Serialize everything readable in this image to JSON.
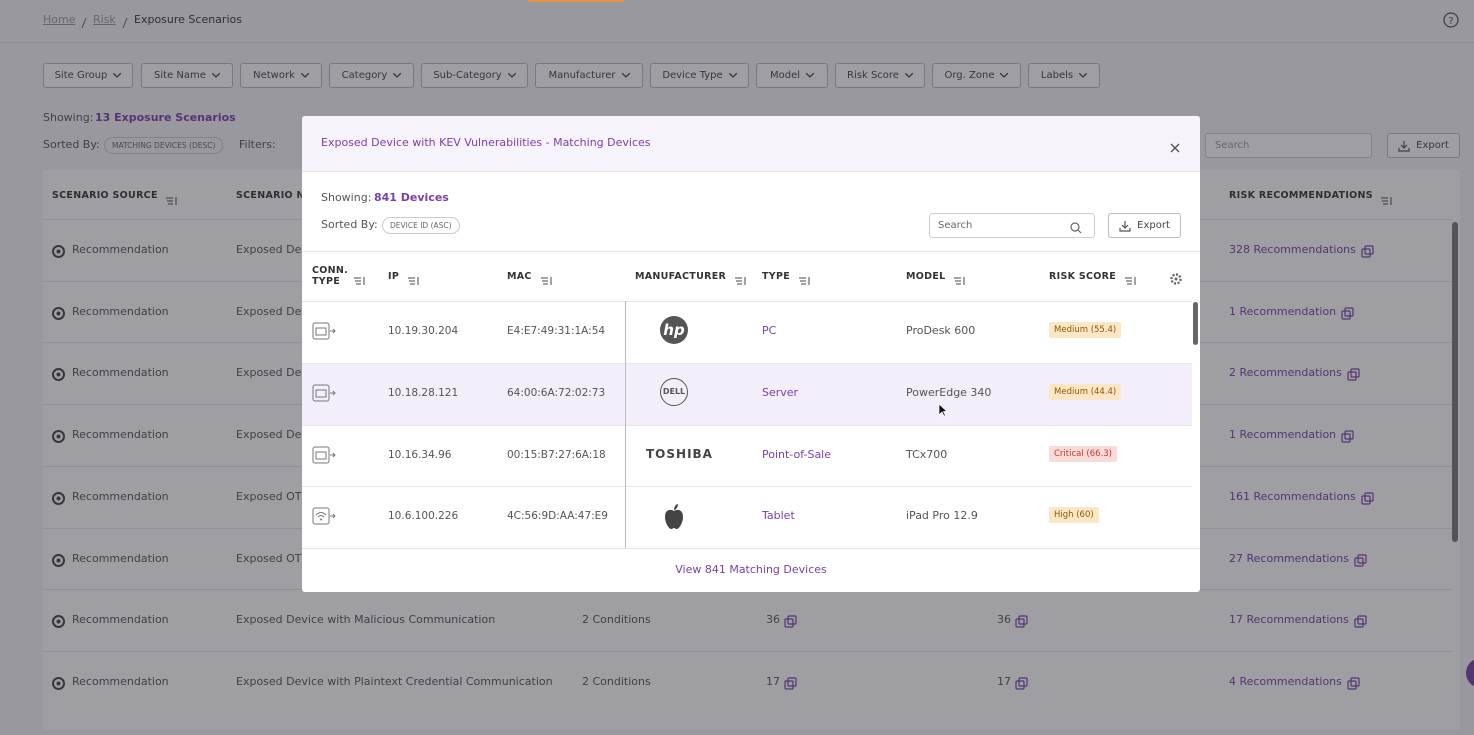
{
  "breadcrumb": [
    "Home",
    "Risk",
    "Exposure Scenarios"
  ],
  "filters": [
    "Site Group",
    "Site Name",
    "Network",
    "Category",
    "Sub-Category",
    "Manufacturer",
    "Device Type",
    "Model",
    "Risk Score",
    "Org. Zone",
    "Labels"
  ],
  "summary": {
    "showing_label": "Showing:",
    "showing_value": "13 Exposure Scenarios",
    "sorted_label": "Sorted By:",
    "sorted_value": "MATCHING DEVICES (DESC)",
    "filters_label": "Filters:"
  },
  "toolbar": {
    "search_placeholder": "Search",
    "export": "Export"
  },
  "table": {
    "headers": [
      "SCENARIO SOURCE",
      "SCENARIO NA",
      "RISK RECOMMENDATIONS"
    ],
    "rows": [
      {
        "source": "Recommendation",
        "name": "Exposed Dev",
        "recommendations": "328 Recommendations"
      },
      {
        "source": "Recommendation",
        "name": "Exposed Dev",
        "recommendations": "1 Recommendation"
      },
      {
        "source": "Recommendation",
        "name": "Exposed Dev",
        "recommendations": "2 Recommendations"
      },
      {
        "source": "Recommendation",
        "name": "Exposed Dev",
        "recommendations": "1 Recommendation"
      },
      {
        "source": "Recommendation",
        "name": "Exposed OT",
        "recommendations": "161 Recommendations"
      },
      {
        "source": "Recommendation",
        "name": "Exposed OT",
        "recommendations": "27 Recommendations"
      },
      {
        "source": "Recommendation",
        "name": "Exposed Device with Malicious Communication",
        "conditions": "2 Conditions",
        "devices": "36",
        "matching": "36",
        "recommendations": "17 Recommendations"
      },
      {
        "source": "Recommendation",
        "name": "Exposed Device with Plaintext Credential Communication",
        "conditions": "2 Conditions",
        "devices": "17",
        "matching": "17",
        "recommendations": "4 Recommendations"
      }
    ]
  },
  "modal": {
    "title": "Exposed Device with KEV Vulnerabilities - Matching Devices",
    "showing_label": "Showing:",
    "showing_value": "841 Devices",
    "sorted_label": "Sorted By:",
    "sorted_value": "DEVICE ID (ASC)",
    "search_placeholder": "Search",
    "export": "Export",
    "headers": [
      "CONN. TYPE",
      "IP",
      "MAC",
      "MANUFACTURER",
      "TYPE",
      "MODEL",
      "RISK SCORE"
    ],
    "rows": [
      {
        "ip": "10.19.30.204",
        "mac": "E4:E7:49:31:1A:54",
        "manufacturer": "hp",
        "type": "PC",
        "model": "ProDesk 600",
        "risk": "Medium (55.4)"
      },
      {
        "ip": "10.18.28.121",
        "mac": "64:00:6A:72:02:73",
        "manufacturer": "DELL",
        "type": "Server",
        "model": "PowerEdge 340",
        "risk": "Medium (44.4)"
      },
      {
        "ip": "10.16.34.96",
        "mac": "00:15:B7:27:6A:18",
        "manufacturer": "TOSHIBA",
        "type": "Point-of-Sale",
        "model": "TCx700",
        "risk": "Critical (66.3)"
      },
      {
        "ip": "10.6.100.226",
        "mac": "4C:56:9D:AA:47:E9",
        "type": "Tablet",
        "model": "iPad Pro 12.9",
        "risk": "High (60)"
      }
    ],
    "footer_link": "View 841 Matching Devices"
  }
}
